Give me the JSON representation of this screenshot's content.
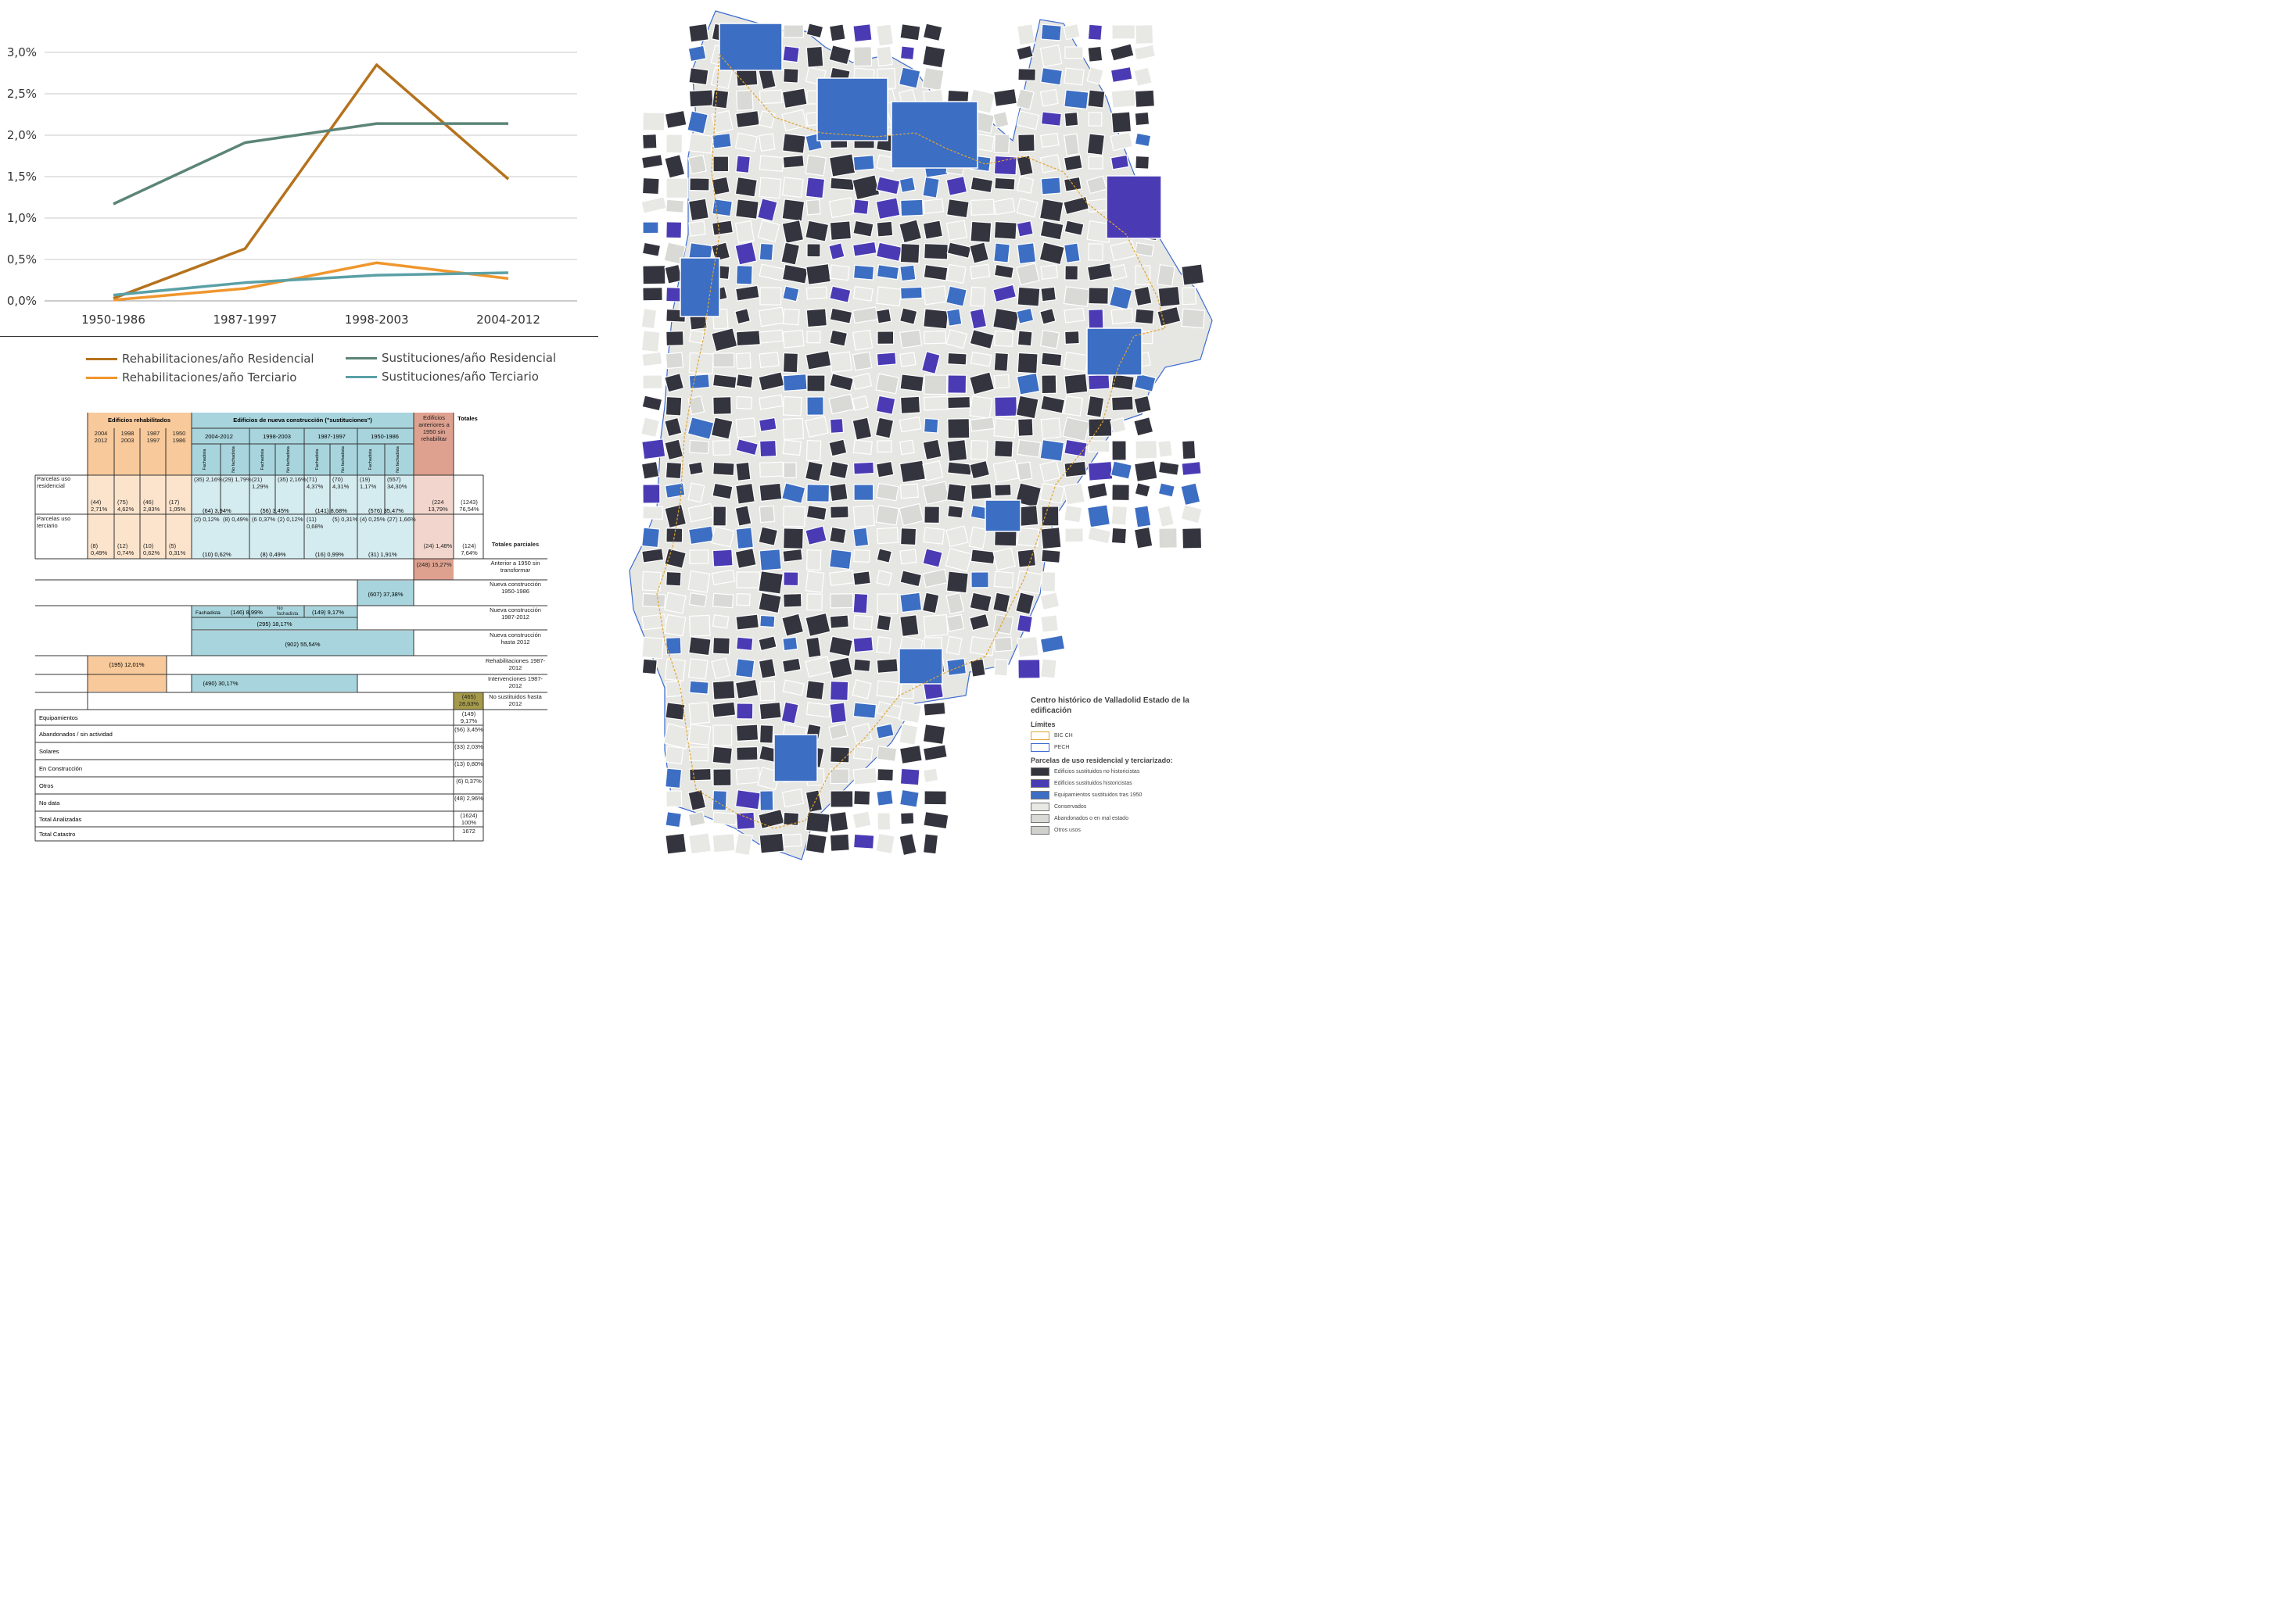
{
  "chart_data": {
    "type": "line",
    "categories": [
      "1950-1986",
      "1987-1997",
      "1998-2003",
      "2004-2012"
    ],
    "y_ticks": [
      "0,0%",
      "0,5%",
      "1,0%",
      "1,5%",
      "2,0%",
      "2,5%",
      "3,0%"
    ],
    "ylim": [
      0,
      3.0
    ],
    "grid": true,
    "legend_position": "bottom",
    "series": [
      {
        "name": "Rehabilitaciones/año Residencial",
        "color": "#b5721d",
        "values": [
          0.03,
          0.63,
          2.85,
          1.47
        ]
      },
      {
        "name": "Sustituciones/año Residencial",
        "color": "#5b8577",
        "values": [
          1.17,
          1.91,
          2.14,
          2.14
        ]
      },
      {
        "name": "Rehabilitaciones/año Terciario",
        "color": "#f0962d",
        "values": [
          0.01,
          0.15,
          0.46,
          0.27
        ]
      },
      {
        "name": "Sustituciones/año Terciario",
        "color": "#5aa0a6",
        "values": [
          0.07,
          0.22,
          0.31,
          0.34
        ]
      }
    ]
  },
  "table": {
    "group_rehab": "Edificios rehabilitados",
    "group_new": "Edificios de nueva construcción (\"sustituciones\")",
    "group_prev": "Edificios anteriores a 1950 sin rehabilitar",
    "group_totals": "Totales",
    "rehab_periods": [
      "2004 2012",
      "1998 2003",
      "1987 1997",
      "1950 1986"
    ],
    "new_periods": [
      "2004-2012",
      "1998-2003",
      "1987-1997",
      "1950-1986"
    ],
    "sub_a": "Fachadista",
    "sub_b": "No fachadista",
    "row1_label": "Parcelas uso residencial",
    "row2_label": "Parcelas uso terciario",
    "row1_new": [
      "(35) 2,16%",
      "(29) 1,79%",
      "(21) 1,29%",
      "(35) 2,16%",
      "(71) 4,37%",
      "(70) 4,31%",
      "(19) 1,17%",
      "(557) 34,30%"
    ],
    "row1_rehab": [
      "(44) 2,71%",
      "(75) 4,62%",
      "(46) 2,83%",
      "(17) 1,05%"
    ],
    "row1_new_totals": [
      "(64) 3,94%",
      "(56) 3,45%",
      "(141) 8,68%",
      "(576) 35,47%"
    ],
    "row1_prev": "(224 13,79%",
    "row1_total": "(1243) 76,54%",
    "row2_new": [
      "(2) 0,12%",
      "(8) 0,49%",
      "(6 0,37%",
      "(2) 0,12%",
      "(11) 0,68%",
      "(5) 0,31%",
      "(4) 0,25%",
      "(27) 1,66%"
    ],
    "row2_rehab": [
      "(8) 0,49%",
      "(12) 0,74%",
      "(10) 0,62%",
      "(5) 0,31%"
    ],
    "row2_new_totals": [
      "(10) 0,62%",
      "(8) 0,49%",
      "(16) 0,99%",
      "(31) 1,91%"
    ],
    "row2_prev": "(24) 1,48%",
    "row2_total": "(124) 7,64%",
    "totales_parciales": "Totales parciales",
    "partials": [
      {
        "label": "Anterior a 1950 sin transformar",
        "value": "(248) 15,27%"
      },
      {
        "label": "Nueva construcción 1950-1986",
        "value": "(607) 37,38%"
      },
      {
        "label": "Nueva construcción 1987-2012",
        "value": "(295) 18,17%",
        "sub_a_label": "Fachadista",
        "sub_a_value": "(146) 8,99%",
        "sub_b_label": "No fachadista",
        "sub_b_value": "(149) 9,17%"
      },
      {
        "label": "Nueva construcción hasta 2012",
        "value": "(902) 55,54%"
      },
      {
        "label": "Rehabilitaciones 1987-2012",
        "value": "(195) 12,01%"
      },
      {
        "label": "Intervenciones 1987-2012",
        "value": "(490) 30,17%"
      },
      {
        "label": "No sustituidos hasta 2012",
        "value": "(465) 28,63%"
      }
    ],
    "bottom_rows": [
      {
        "label": "Equipamientos",
        "value": "(149) 9,17%"
      },
      {
        "label": "Abandonados / sin actividad",
        "value": "(56) 3,45%"
      },
      {
        "label": "Solares",
        "value": "(33) 2,03%"
      },
      {
        "label": "En Construcción",
        "value": "(13) 0,80%"
      },
      {
        "label": "Otros",
        "value": "(6) 0,37%"
      },
      {
        "label": "No data",
        "value": "(48) 2,96%"
      },
      {
        "label": "Total Analizadas",
        "value": "(1624) 100%"
      },
      {
        "label": "Total Catastro",
        "value": "1672"
      }
    ],
    "colors": {
      "rehab": "#f8c99a",
      "rehab_light": "#fbe3cc",
      "new": "#a8d5dd",
      "new_light": "#d4ebef",
      "prev": "#dea08f",
      "prev_light": "#f2d6cd",
      "olive": "#a59a4a"
    }
  },
  "map_legend": {
    "title": "Centro histórico de Valladolid Estado de la edificación",
    "limits_heading": "Límites",
    "limits": [
      {
        "label": "BIC CH",
        "color": "#e0a530"
      },
      {
        "label": "PECH",
        "color": "#3b6bd0"
      }
    ],
    "parcels_heading": "Parcelas de uso residencial y terciarizado:",
    "parcels": [
      {
        "label": "Edificios sustituidos no historicistas",
        "color": "#34343e"
      },
      {
        "label": "Edificios sustituidos historicistas",
        "color": "#4a3bb5"
      },
      {
        "label": "Equipamientos sustituidos tras 1950",
        "color": "#3c6ec3"
      },
      {
        "label": "Conservados",
        "color": "#e8e8e5"
      },
      {
        "label": "Abandonados o en mal estado",
        "color": "#d9d9d6"
      },
      {
        "label": "Otros usos",
        "color": "#cfcfcc"
      }
    ]
  }
}
